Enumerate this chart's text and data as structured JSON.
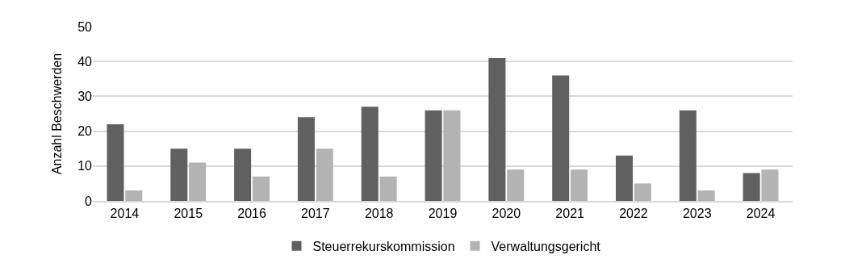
{
  "chart_data": {
    "type": "bar",
    "ylabel": "Anzahl Beschwerden",
    "categories": [
      "2014",
      "2015",
      "2016",
      "2017",
      "2018",
      "2019",
      "2020",
      "2021",
      "2022",
      "2023",
      "2024"
    ],
    "series": [
      {
        "name": "Steuerrekurskommission",
        "color": "#606060",
        "values": [
          22,
          15,
          15,
          24,
          27,
          26,
          41,
          36,
          13,
          26,
          8
        ]
      },
      {
        "name": "Verwaltungsgericht",
        "color": "#b3b3b3",
        "values": [
          3,
          11,
          7,
          15,
          7,
          26,
          9,
          9,
          5,
          3,
          9
        ]
      }
    ],
    "ylim": [
      0,
      50
    ],
    "yticks": [
      0,
      10,
      20,
      30,
      40,
      50
    ],
    "grid": "y",
    "legend": "bottom"
  }
}
